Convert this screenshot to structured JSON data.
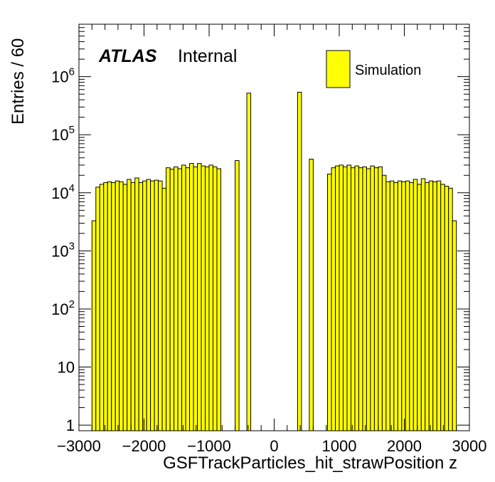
{
  "chart_data": {
    "type": "bar",
    "xlabel": "GSFTrackParticles_hit_strawPosition z",
    "ylabel": "Entries / 60",
    "xlim": [
      -3000,
      3000
    ],
    "ylim": [
      0.8,
      8000000
    ],
    "log_y": true,
    "bin_width": 60,
    "fill_color": "#ffff00",
    "line_color": "#000000",
    "x_ticks": [
      -3000,
      -2000,
      -1000,
      0,
      1000,
      2000,
      3000
    ],
    "x_tick_labels": [
      "−3000",
      "−2000",
      "−1000",
      "0",
      "1000",
      "2000",
      "3000"
    ],
    "y_ticks": [
      {
        "value": 1,
        "base": "1",
        "exp": ""
      },
      {
        "value": 10,
        "base": "10",
        "exp": ""
      },
      {
        "value": 100,
        "base": "10",
        "exp": "2"
      },
      {
        "value": 1000,
        "base": "10",
        "exp": "3"
      },
      {
        "value": 10000,
        "base": "10",
        "exp": "4"
      },
      {
        "value": 100000,
        "base": "10",
        "exp": "5"
      },
      {
        "value": 1000000,
        "base": "10",
        "exp": "6"
      }
    ],
    "annotation": {
      "experiment": "ATLAS",
      "status": "Internal"
    },
    "legend": {
      "position": "top-right",
      "entries": [
        {
          "label": "Simulation",
          "color": "#ffff00"
        }
      ]
    },
    "series": [
      {
        "name": "Simulation",
        "bins": [
          {
            "x0": -2800,
            "x1": -2740,
            "y": 3300
          },
          {
            "x0": -2740,
            "x1": -2680,
            "y": 12500
          },
          {
            "x0": -2680,
            "x1": -2620,
            "y": 14000
          },
          {
            "x0": -2620,
            "x1": -2560,
            "y": 15000
          },
          {
            "x0": -2560,
            "x1": -2500,
            "y": 15500
          },
          {
            "x0": -2500,
            "x1": -2440,
            "y": 15000
          },
          {
            "x0": -2440,
            "x1": -2380,
            "y": 16000
          },
          {
            "x0": -2380,
            "x1": -2320,
            "y": 15500
          },
          {
            "x0": -2320,
            "x1": -2260,
            "y": 14000
          },
          {
            "x0": -2260,
            "x1": -2200,
            "y": 17000
          },
          {
            "x0": -2200,
            "x1": -2140,
            "y": 15000
          },
          {
            "x0": -2140,
            "x1": -2080,
            "y": 18000
          },
          {
            "x0": -2080,
            "x1": -2020,
            "y": 15000
          },
          {
            "x0": -2020,
            "x1": -1960,
            "y": 16000
          },
          {
            "x0": -1960,
            "x1": -1900,
            "y": 17000
          },
          {
            "x0": -1900,
            "x1": -1840,
            "y": 16000
          },
          {
            "x0": -1840,
            "x1": -1780,
            "y": 16500
          },
          {
            "x0": -1780,
            "x1": -1720,
            "y": 16000
          },
          {
            "x0": -1720,
            "x1": -1660,
            "y": 12000
          },
          {
            "x0": -1660,
            "x1": -1600,
            "y": 27000
          },
          {
            "x0": -1600,
            "x1": -1540,
            "y": 25500
          },
          {
            "x0": -1540,
            "x1": -1480,
            "y": 28000
          },
          {
            "x0": -1480,
            "x1": -1420,
            "y": 26000
          },
          {
            "x0": -1420,
            "x1": -1360,
            "y": 30000
          },
          {
            "x0": -1360,
            "x1": -1300,
            "y": 27000
          },
          {
            "x0": -1300,
            "x1": -1240,
            "y": 32000
          },
          {
            "x0": -1240,
            "x1": -1180,
            "y": 28000
          },
          {
            "x0": -1180,
            "x1": -1120,
            "y": 32000
          },
          {
            "x0": -1120,
            "x1": -1060,
            "y": 29000
          },
          {
            "x0": -1060,
            "x1": -1000,
            "y": 28000
          },
          {
            "x0": -1000,
            "x1": -940,
            "y": 30000
          },
          {
            "x0": -940,
            "x1": -880,
            "y": 28000
          },
          {
            "x0": -880,
            "x1": -820,
            "y": 26000
          },
          {
            "x0": -600,
            "x1": -540,
            "y": 36000
          },
          {
            "x0": -420,
            "x1": -360,
            "y": 520000
          },
          {
            "x0": 360,
            "x1": 420,
            "y": 540000
          },
          {
            "x0": 540,
            "x1": 600,
            "y": 38000
          },
          {
            "x0": 820,
            "x1": 880,
            "y": 21000
          },
          {
            "x0": 880,
            "x1": 940,
            "y": 27000
          },
          {
            "x0": 940,
            "x1": 1000,
            "y": 29000
          },
          {
            "x0": 1000,
            "x1": 1060,
            "y": 30000
          },
          {
            "x0": 1060,
            "x1": 1120,
            "y": 28000
          },
          {
            "x0": 1120,
            "x1": 1180,
            "y": 30000
          },
          {
            "x0": 1180,
            "x1": 1240,
            "y": 27000
          },
          {
            "x0": 1240,
            "x1": 1300,
            "y": 29000
          },
          {
            "x0": 1300,
            "x1": 1360,
            "y": 27000
          },
          {
            "x0": 1360,
            "x1": 1420,
            "y": 28000
          },
          {
            "x0": 1420,
            "x1": 1480,
            "y": 26000
          },
          {
            "x0": 1480,
            "x1": 1540,
            "y": 29000
          },
          {
            "x0": 1540,
            "x1": 1600,
            "y": 27000
          },
          {
            "x0": 1600,
            "x1": 1660,
            "y": 28000
          },
          {
            "x0": 1660,
            "x1": 1720,
            "y": 20000
          },
          {
            "x0": 1720,
            "x1": 1780,
            "y": 15500
          },
          {
            "x0": 1780,
            "x1": 1840,
            "y": 16000
          },
          {
            "x0": 1840,
            "x1": 1900,
            "y": 15000
          },
          {
            "x0": 1900,
            "x1": 1960,
            "y": 16000
          },
          {
            "x0": 1960,
            "x1": 2020,
            "y": 15500
          },
          {
            "x0": 2020,
            "x1": 2080,
            "y": 16000
          },
          {
            "x0": 2080,
            "x1": 2140,
            "y": 15000
          },
          {
            "x0": 2140,
            "x1": 2200,
            "y": 17000
          },
          {
            "x0": 2200,
            "x1": 2260,
            "y": 14000
          },
          {
            "x0": 2260,
            "x1": 2320,
            "y": 17500
          },
          {
            "x0": 2320,
            "x1": 2380,
            "y": 15000
          },
          {
            "x0": 2380,
            "x1": 2440,
            "y": 16000
          },
          {
            "x0": 2440,
            "x1": 2500,
            "y": 15500
          },
          {
            "x0": 2500,
            "x1": 2560,
            "y": 16000
          },
          {
            "x0": 2560,
            "x1": 2620,
            "y": 14000
          },
          {
            "x0": 2620,
            "x1": 2680,
            "y": 13000
          },
          {
            "x0": 2680,
            "x1": 2740,
            "y": 12000
          },
          {
            "x0": 2740,
            "x1": 2800,
            "y": 3300
          }
        ]
      }
    ]
  }
}
